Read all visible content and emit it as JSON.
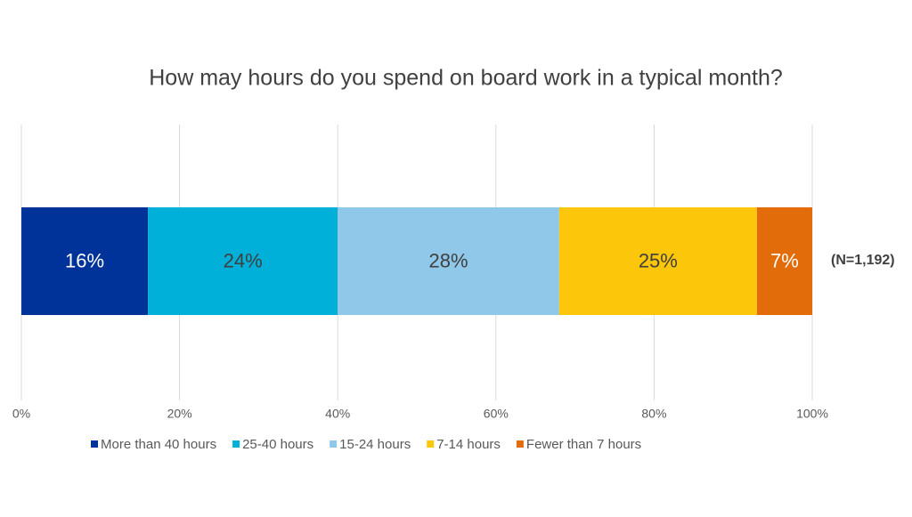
{
  "chart_data": {
    "type": "stacked-bar",
    "orientation": "horizontal",
    "title": "How may hours do you spend on board work in a typical month?",
    "annotation": "(N=1,192)",
    "series": [
      {
        "name": "More than 40 hours",
        "color": "#003399",
        "values": [
          16
        ],
        "value_labels": [
          "16%"
        ]
      },
      {
        "name": "25-40 hours",
        "color": "#00b0d8",
        "values": [
          24
        ],
        "value_labels": [
          "24%"
        ]
      },
      {
        "name": "15-24 hours",
        "color": "#8fc8e8",
        "values": [
          28
        ],
        "value_labels": [
          "28%"
        ]
      },
      {
        "name": "7-14 hours",
        "color": "#fcc60a",
        "values": [
          25
        ],
        "value_labels": [
          "25%"
        ]
      },
      {
        "name": "Fewer than 7 hours",
        "color": "#e36c0a",
        "values": [
          7
        ],
        "value_labels": [
          "7%"
        ]
      }
    ],
    "xlim": [
      0,
      100
    ],
    "xticks": [
      {
        "value": 0,
        "label": "0%"
      },
      {
        "value": 20,
        "label": "20%"
      },
      {
        "value": 40,
        "label": "40%"
      },
      {
        "value": 60,
        "label": "60%"
      },
      {
        "value": 80,
        "label": "80%"
      },
      {
        "value": 100,
        "label": "100%"
      }
    ],
    "grid": true,
    "legend": "bottom"
  }
}
